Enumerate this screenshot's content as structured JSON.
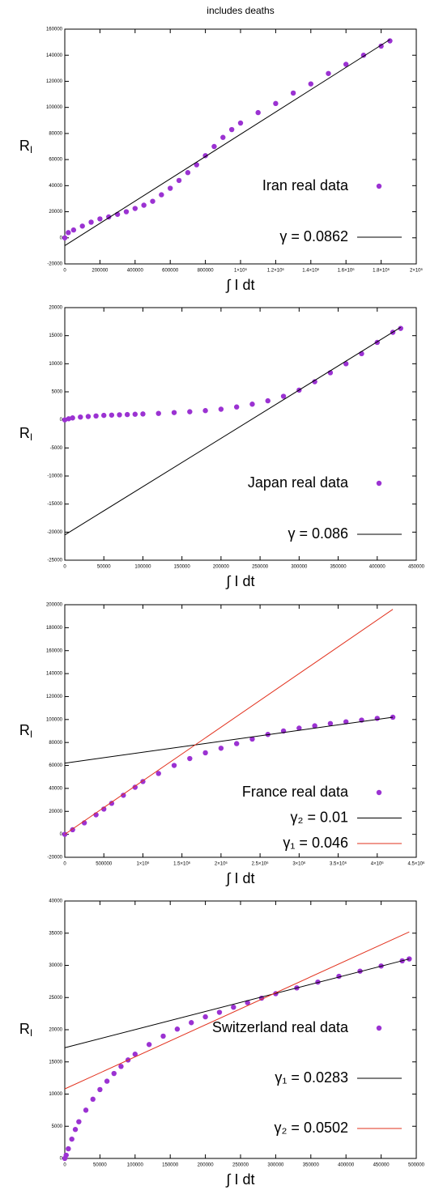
{
  "chart_data": [
    {
      "type": "scatter",
      "title": "includes deaths",
      "xlabel": "∫ I dt",
      "ylabel": "R",
      "ylabel_sub": "I",
      "legend": "bottom right",
      "xlim": [
        0,
        2000000
      ],
      "ylim": [
        -20000,
        160000
      ],
      "xticks": [
        0,
        200000,
        400000,
        600000,
        800000,
        {
          "value": 1000000,
          "label": "1×10⁶"
        },
        {
          "value": 1200000,
          "label": "1.2×10⁶"
        },
        {
          "value": 1400000,
          "label": "1.4×10⁶"
        },
        {
          "value": 1600000,
          "label": "1.6×10⁶"
        },
        {
          "value": 1800000,
          "label": "1.8×10⁶"
        },
        {
          "value": 2000000,
          "label": "2×10⁶"
        }
      ],
      "yticks": [
        -20000,
        0,
        20000,
        40000,
        60000,
        80000,
        100000,
        120000,
        140000,
        160000
      ],
      "series": [
        {
          "name": "Iran real data",
          "style": "points",
          "color": "#9b32d2",
          "x": [
            0,
            20000,
            50000,
            100000,
            150000,
            200000,
            250000,
            300000,
            350000,
            400000,
            450000,
            500000,
            550000,
            600000,
            650000,
            700000,
            750000,
            800000,
            850000,
            900000,
            950000,
            1000000,
            1100000,
            1200000,
            1300000,
            1400000,
            1500000,
            1600000,
            1700000,
            1800000,
            1850000
          ],
          "values": [
            0,
            4000,
            6000,
            9000,
            12000,
            14500,
            16000,
            18000,
            20000,
            22500,
            25000,
            28000,
            33000,
            38000,
            44000,
            50000,
            56000,
            63000,
            70000,
            77000,
            83000,
            88000,
            96000,
            103000,
            111000,
            118000,
            126000,
            133000,
            140000,
            147000,
            151000
          ]
        },
        {
          "name": "γ =  0.0862",
          "style": "line",
          "color": "#000000",
          "x": [
            0,
            1850000
          ],
          "values": [
            -6000,
            152000
          ]
        }
      ]
    },
    {
      "type": "scatter",
      "xlabel": "∫ I dt",
      "ylabel": "R",
      "ylabel_sub": "I",
      "legend": "bottom right",
      "xlim": [
        0,
        450000
      ],
      "ylim": [
        -25000,
        20000
      ],
      "xticks": [
        0,
        50000,
        100000,
        150000,
        200000,
        250000,
        300000,
        350000,
        400000,
        450000
      ],
      "yticks": [
        -25000,
        -20000,
        -15000,
        -10000,
        -5000,
        0,
        5000,
        10000,
        15000,
        20000
      ],
      "series": [
        {
          "name": "Japan real data",
          "style": "points",
          "color": "#9b32d2",
          "x": [
            0,
            5000,
            10000,
            20000,
            30000,
            40000,
            50000,
            60000,
            70000,
            80000,
            90000,
            100000,
            120000,
            140000,
            160000,
            180000,
            200000,
            220000,
            240000,
            260000,
            280000,
            300000,
            320000,
            340000,
            360000,
            380000,
            400000,
            420000,
            430000
          ],
          "values": [
            0,
            200,
            350,
            500,
            600,
            700,
            800,
            850,
            900,
            950,
            1000,
            1050,
            1150,
            1300,
            1450,
            1650,
            1900,
            2300,
            2800,
            3400,
            4200,
            5300,
            6800,
            8400,
            10000,
            11800,
            13800,
            15600,
            16300
          ]
        },
        {
          "name": "γ =  0.086",
          "style": "line",
          "color": "#000000",
          "x": [
            0,
            430000
          ],
          "values": [
            -20500,
            16500
          ]
        }
      ]
    },
    {
      "type": "scatter",
      "xlabel": "∫ I dt",
      "ylabel": "R",
      "ylabel_sub": "I",
      "legend": "bottom right",
      "xlim": [
        0,
        4500000
      ],
      "ylim": [
        -20000,
        200000
      ],
      "xticks": [
        0,
        500000,
        {
          "value": 1000000,
          "label": "1×10⁶"
        },
        {
          "value": 1500000,
          "label": "1.5×10⁶"
        },
        {
          "value": 2000000,
          "label": "2×10⁶"
        },
        {
          "value": 2500000,
          "label": "2.5×10⁶"
        },
        {
          "value": 3000000,
          "label": "3×10⁶"
        },
        {
          "value": 3500000,
          "label": "3.5×10⁶"
        },
        {
          "value": 4000000,
          "label": "4×10⁶"
        },
        {
          "value": 4500000,
          "label": "4.5×10⁶"
        }
      ],
      "yticks": [
        -20000,
        0,
        20000,
        40000,
        60000,
        80000,
        100000,
        120000,
        140000,
        160000,
        180000,
        200000
      ],
      "series": [
        {
          "name": "France real data",
          "style": "points",
          "color": "#9b32d2",
          "x": [
            0,
            100000,
            250000,
            400000,
            500000,
            600000,
            750000,
            900000,
            1000000,
            1200000,
            1400000,
            1600000,
            1800000,
            2000000,
            2200000,
            2400000,
            2600000,
            2800000,
            3000000,
            3200000,
            3400000,
            3600000,
            3800000,
            4000000,
            4200000
          ],
          "values": [
            0,
            4000,
            10000,
            17000,
            22000,
            27000,
            34000,
            41000,
            46000,
            53000,
            60000,
            66000,
            71000,
            75000,
            79000,
            83000,
            87000,
            90000,
            92500,
            94500,
            96500,
            98000,
            99500,
            101000,
            102000
          ]
        },
        {
          "name": "γ₂ =  0.01",
          "style": "line",
          "color": "#000000",
          "x": [
            0,
            4200000
          ],
          "values": [
            62000,
            102000
          ]
        },
        {
          "name": "γ₁ =  0.046",
          "style": "line",
          "color": "#e2321e",
          "x": [
            0,
            4200000
          ],
          "values": [
            0,
            196000
          ]
        }
      ]
    },
    {
      "type": "scatter",
      "xlabel": "∫ I dt",
      "ylabel": "R",
      "ylabel_sub": "I",
      "legend": "bottom right",
      "xlim": [
        0,
        500000
      ],
      "ylim": [
        0,
        40000
      ],
      "xticks": [
        0,
        50000,
        100000,
        150000,
        200000,
        250000,
        300000,
        350000,
        400000,
        450000,
        500000
      ],
      "yticks": [
        0,
        5000,
        10000,
        15000,
        20000,
        25000,
        30000,
        35000,
        40000
      ],
      "series": [
        {
          "name": "Switzerland real data",
          "style": "points",
          "color": "#9b32d2",
          "x": [
            0,
            2000,
            5000,
            10000,
            15000,
            20000,
            30000,
            40000,
            50000,
            60000,
            70000,
            80000,
            90000,
            100000,
            120000,
            140000,
            160000,
            180000,
            200000,
            220000,
            240000,
            260000,
            280000,
            300000,
            330000,
            360000,
            390000,
            420000,
            450000,
            480000,
            490000
          ],
          "values": [
            0,
            500,
            1500,
            3000,
            4500,
            5700,
            7500,
            9200,
            10700,
            12000,
            13200,
            14300,
            15300,
            16200,
            17700,
            19000,
            20100,
            21100,
            22000,
            22700,
            23500,
            24200,
            24900,
            25600,
            26500,
            27400,
            28300,
            29100,
            29900,
            30700,
            31000
          ]
        },
        {
          "name": "γ₁ =  0.0283",
          "style": "line",
          "color": "#000000",
          "x": [
            0,
            490000
          ],
          "values": [
            17200,
            31000
          ]
        },
        {
          "name": "γ₂ =  0.0502",
          "style": "line",
          "color": "#e2321e",
          "x": [
            0,
            490000
          ],
          "values": [
            10800,
            35200
          ]
        }
      ]
    }
  ]
}
